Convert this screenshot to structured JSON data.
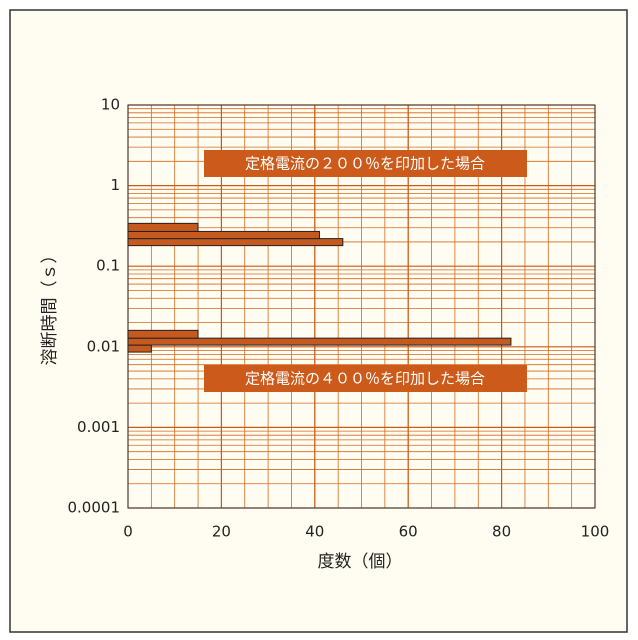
{
  "chart_data": {
    "type": "histogram",
    "orientation": "horizontal",
    "xlabel": "度数（個）",
    "ylabel": "溶断時間（ｓ）",
    "xlim": [
      0,
      100
    ],
    "xticks": [
      0,
      20,
      40,
      60,
      80,
      100
    ],
    "xgrid_step": 5,
    "ylim": [
      0.0001,
      10
    ],
    "yticks": [
      0.0001,
      0.001,
      0.01,
      0.1,
      1,
      10
    ],
    "ylog": true,
    "grid": true,
    "series": [
      {
        "bins": [
          0.18,
          0.22,
          0.27,
          0.34
        ],
        "values": [
          46,
          41,
          15
        ],
        "color": "#c65a1e"
      },
      {
        "bins": [
          0.0086,
          0.0105,
          0.0128,
          0.016
        ],
        "values": [
          5,
          82,
          15
        ],
        "color": "#c65a1e"
      }
    ],
    "annotations": [
      "定格電流の２００％を印加した場合",
      "定格電流の４００％を印加した場合"
    ],
    "annotation_color": "#cc5a1a"
  }
}
